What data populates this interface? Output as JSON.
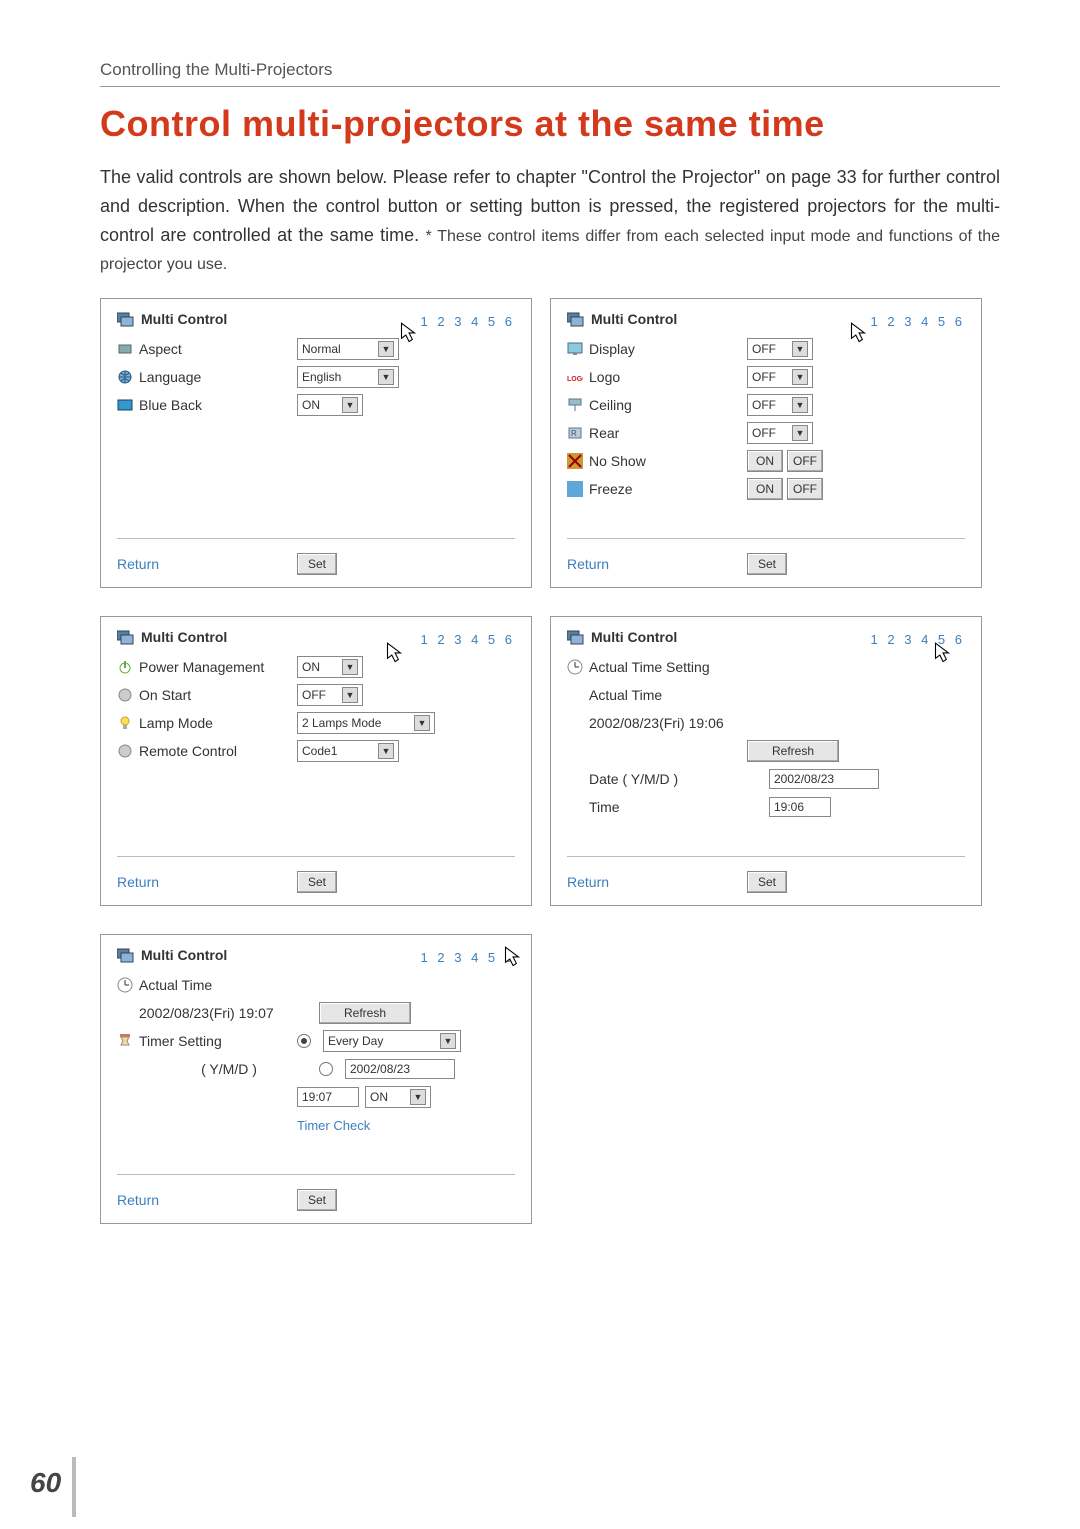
{
  "breadcrumb": "Controlling the Multi-Projectors",
  "heading": "Control multi-projectors at the same time",
  "body_text": "The valid controls are shown below. Please refer to chapter \"Control the Projector\" on page 33 for further control and description. When the control button or setting button is pressed, the registered projectors for the multi-control are controlled at the same time. ",
  "body_note": "* These control items differ from each selected input mode and functions of the projector you use.",
  "page_number": "60",
  "common": {
    "panel_title": "Multi Control",
    "page_nums": "1 2 3 4 5 6",
    "return": "Return",
    "set": "Set"
  },
  "panels": {
    "p1": {
      "rows": [
        {
          "label": "Aspect",
          "value": "Normal",
          "width": "med"
        },
        {
          "label": "Language",
          "value": "English",
          "width": "med"
        },
        {
          "label": "Blue Back",
          "value": "ON",
          "width": "small"
        }
      ]
    },
    "p2": {
      "rows": [
        {
          "label": "Display",
          "value": "OFF",
          "width": "small"
        },
        {
          "label": "Logo",
          "value": "OFF",
          "width": "small"
        },
        {
          "label": "Ceiling",
          "value": "OFF",
          "width": "small"
        },
        {
          "label": "Rear",
          "value": "OFF",
          "width": "small"
        }
      ],
      "noshow": "No Show",
      "freeze": "Freeze",
      "on": "ON",
      "off": "OFF"
    },
    "p3": {
      "rows": [
        {
          "label": "Power Management",
          "value": "ON",
          "width": "small"
        },
        {
          "label": "On Start",
          "value": "OFF",
          "width": "small"
        },
        {
          "label": "Lamp Mode",
          "value": "2 Lamps Mode",
          "width": "wide"
        },
        {
          "label": "Remote Control",
          "value": "Code1",
          "width": "med"
        }
      ]
    },
    "p4": {
      "actual_setting": "Actual Time Setting",
      "actual_time": "Actual Time",
      "clock": "2002/08/23(Fri) 19:06",
      "refresh": "Refresh",
      "date_label": "Date ( Y/M/D )",
      "date_value": "2002/08/23",
      "time_label": "Time",
      "time_value": "19:06"
    },
    "p5": {
      "actual_time": "Actual Time",
      "clock": "2002/08/23(Fri) 19:07",
      "refresh": "Refresh",
      "timer_setting": "Timer Setting",
      "ymd": "( Y/M/D )",
      "every_day": "Every Day",
      "date_value": "2002/08/23",
      "time_value": "19:07",
      "on": "ON",
      "timer_check": "Timer Check"
    }
  },
  "colors": {
    "heading": "#d33a1c",
    "link": "#3a7fbf",
    "border": "#999999"
  }
}
